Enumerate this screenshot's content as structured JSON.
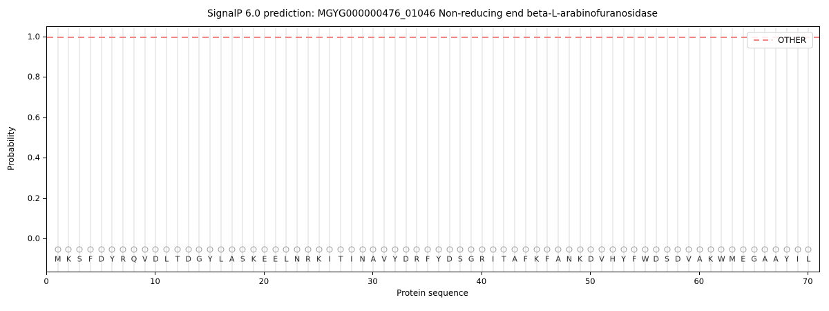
{
  "chart_data": {
    "type": "line",
    "title": "SignalP 6.0 prediction: MGYG000000476_01046 Non-reducing end beta-L-arabinofuranosidase",
    "xlabel": "Protein sequence",
    "ylabel": "Probability",
    "xlim": [
      0,
      71
    ],
    "ylim": [
      -0.16,
      1.05
    ],
    "xticks": [
      {
        "value": 0,
        "label": "0"
      },
      {
        "value": 10,
        "label": "10"
      },
      {
        "value": 20,
        "label": "20"
      },
      {
        "value": 30,
        "label": "30"
      },
      {
        "value": 40,
        "label": "40"
      },
      {
        "value": 50,
        "label": "50"
      },
      {
        "value": 60,
        "label": "60"
      },
      {
        "value": 70,
        "label": "70"
      }
    ],
    "yticks": [
      {
        "value": 0.0,
        "label": "0.0"
      },
      {
        "value": 0.2,
        "label": "0.2"
      },
      {
        "value": 0.4,
        "label": "0.4"
      },
      {
        "value": 0.6,
        "label": "0.6"
      },
      {
        "value": 0.8,
        "label": "0.8"
      },
      {
        "value": 1.0,
        "label": "1.0"
      }
    ],
    "grid": {
      "vertical_per_residue": true,
      "horizontal": false,
      "color": "#ececec"
    },
    "sequence": "MKSFDYRQVDLTDGYLASKEELNRKITINAVYDRFYDSGRITAFKFANKDVHYFWDSDVAKWMEGAAYIL",
    "sequence_start_position": 1,
    "marker_row": {
      "shape": "circle-open",
      "color": "#999999",
      "y": -0.05
    },
    "letter_row": {
      "y": -0.1,
      "color": "#2b2b2b"
    },
    "series": [
      {
        "name": "OTHER",
        "color": "#f08787",
        "linestyle": "dashed",
        "x_start": 1,
        "x_step": 1,
        "values": [
          1.0,
          1.0,
          1.0,
          1.0,
          1.0,
          1.0,
          1.0,
          1.0,
          1.0,
          1.0,
          1.0,
          1.0,
          1.0,
          1.0,
          1.0,
          1.0,
          1.0,
          1.0,
          1.0,
          1.0,
          1.0,
          1.0,
          1.0,
          1.0,
          1.0,
          1.0,
          1.0,
          1.0,
          1.0,
          1.0,
          1.0,
          1.0,
          1.0,
          1.0,
          1.0,
          1.0,
          1.0,
          1.0,
          1.0,
          1.0,
          1.0,
          1.0,
          1.0,
          1.0,
          1.0,
          1.0,
          1.0,
          1.0,
          1.0,
          1.0,
          1.0,
          1.0,
          1.0,
          1.0,
          1.0,
          1.0,
          1.0,
          1.0,
          1.0,
          1.0,
          1.0,
          1.0,
          1.0,
          1.0,
          1.0,
          1.0,
          1.0,
          1.0,
          1.0,
          1.0
        ]
      }
    ],
    "legend": {
      "location": "upper right",
      "entries": [
        {
          "label": "OTHER",
          "color": "#f08787",
          "linestyle": "dashed"
        }
      ]
    }
  }
}
